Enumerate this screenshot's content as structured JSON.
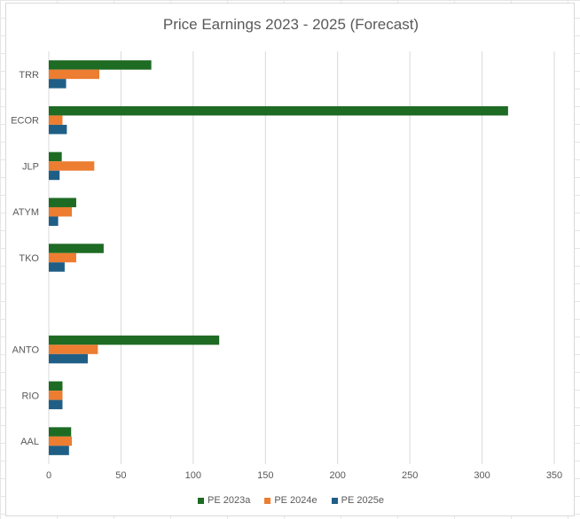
{
  "chart_data": {
    "type": "bar",
    "orientation": "horizontal",
    "title": "Price Earnings 2023 - 2025 (Forecast)",
    "xlabel": "",
    "ylabel": "",
    "xlim": [
      0,
      350
    ],
    "x_ticks": [
      "0",
      "50",
      "100",
      "150",
      "200",
      "250",
      "300",
      "350"
    ],
    "grid": true,
    "legend_position": "bottom",
    "categories": [
      "TRR",
      "ECOR",
      "JLP",
      "ATYM",
      "TKO",
      "",
      "ANTO",
      "RIO",
      "AAL"
    ],
    "series": [
      {
        "name": "PE 2023a",
        "color": "#1e6b24",
        "values": [
          71,
          318,
          9,
          19,
          38,
          null,
          118,
          9.5,
          15.5
        ]
      },
      {
        "name": "PE 2024e",
        "color": "#ed7d31",
        "values": [
          35,
          9.5,
          31.5,
          16,
          19,
          null,
          34,
          9.5,
          16
        ]
      },
      {
        "name": "PE 2025e",
        "color": "#1f5f86",
        "values": [
          12,
          12.5,
          7.5,
          6.5,
          11,
          null,
          27,
          9.5,
          14
        ]
      }
    ]
  }
}
